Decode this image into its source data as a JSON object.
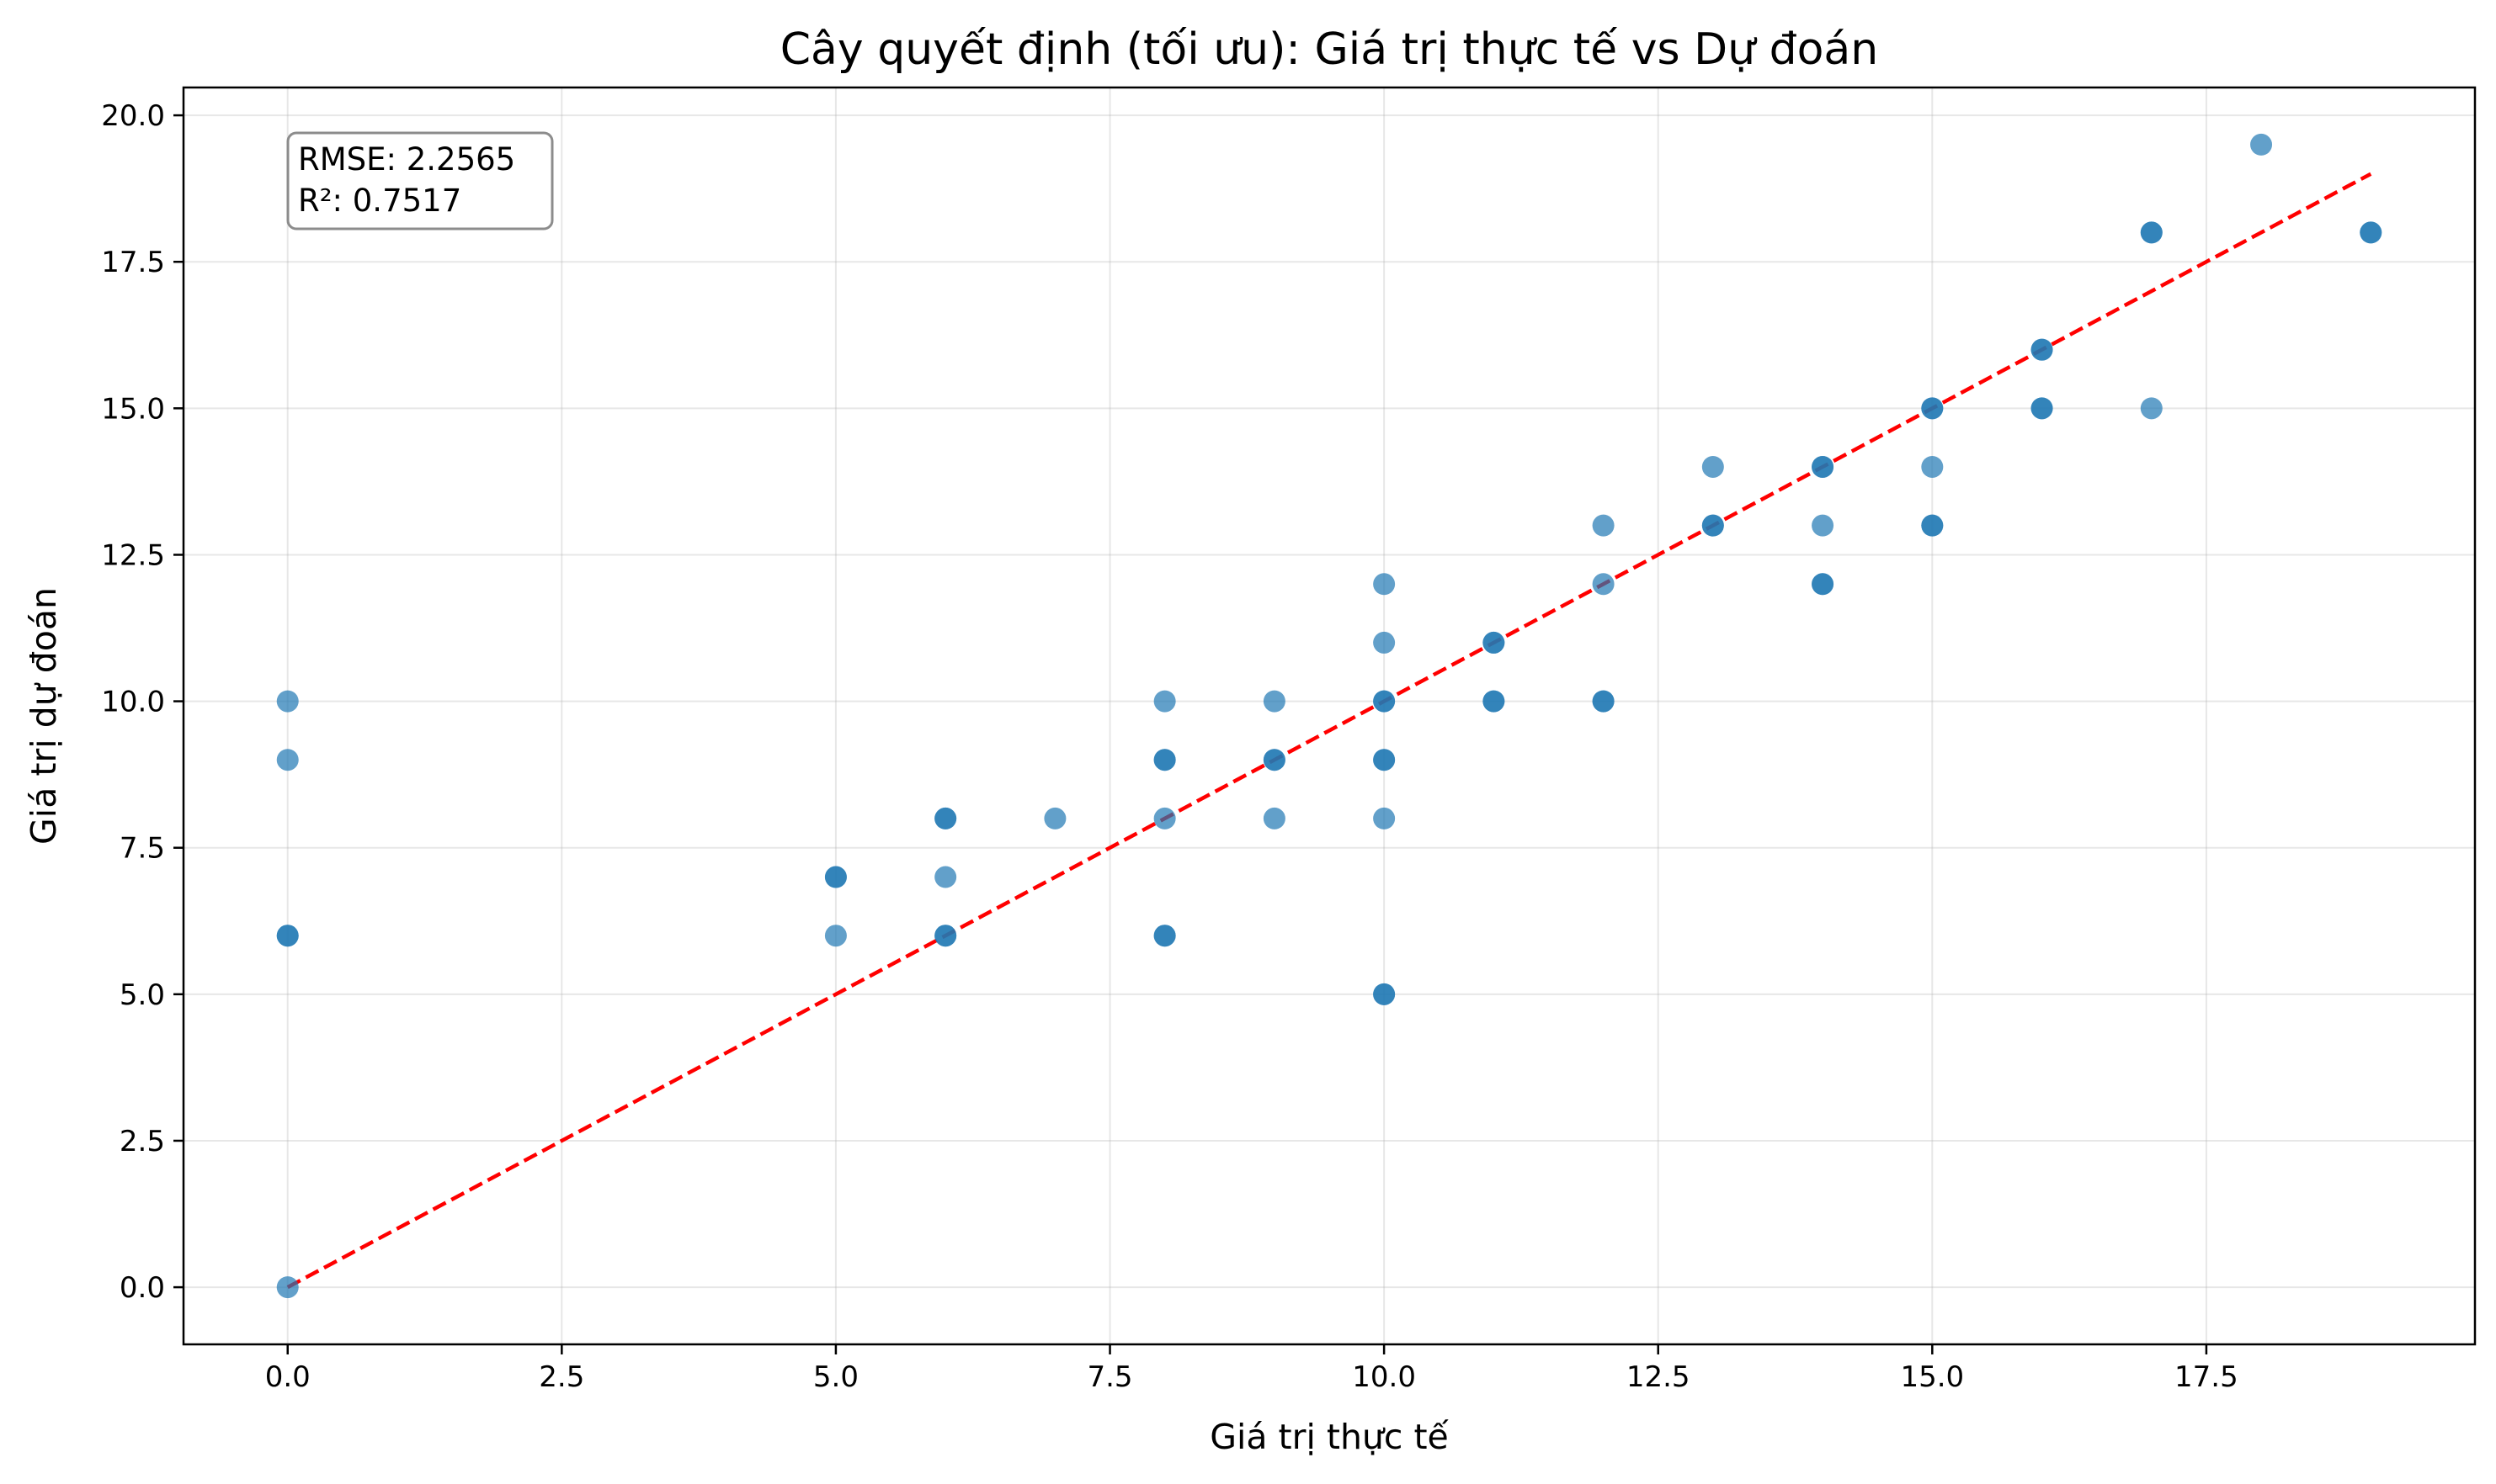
{
  "chart_data": {
    "type": "scatter",
    "title": "Cây quyết định (tối ưu): Giá trị thực tế vs Dự đoán",
    "xlabel": "Giá trị thực tế",
    "ylabel": "Giá trị dự đoán",
    "xlim": [
      -0.95,
      19.95
    ],
    "ylim": [
      -0.975,
      20.475
    ],
    "xticks": [
      0.0,
      2.5,
      5.0,
      7.5,
      10.0,
      12.5,
      15.0,
      17.5
    ],
    "xtick_labels": [
      "0.0",
      "2.5",
      "5.0",
      "7.5",
      "10.0",
      "12.5",
      "15.0",
      "17.5"
    ],
    "yticks": [
      0.0,
      2.5,
      5.0,
      7.5,
      10.0,
      12.5,
      15.0,
      17.5,
      20.0
    ],
    "ytick_labels": [
      "0.0",
      "2.5",
      "5.0",
      "7.5",
      "10.0",
      "12.5",
      "15.0",
      "17.5",
      "20.0"
    ],
    "grid": true,
    "colors": {
      "points": "#1f77b4",
      "reference_line": "#ff0000"
    },
    "reference_line": {
      "x": [
        0,
        19
      ],
      "y": [
        0,
        19
      ],
      "style": "dashed"
    },
    "points": [
      [
        0,
        10
      ],
      [
        0,
        9
      ],
      [
        0,
        6
      ],
      [
        0,
        6
      ],
      [
        0,
        0
      ],
      [
        5,
        7
      ],
      [
        5,
        7
      ],
      [
        5,
        6
      ],
      [
        6,
        8
      ],
      [
        6,
        8
      ],
      [
        6,
        7
      ],
      [
        6,
        6
      ],
      [
        6,
        6
      ],
      [
        7,
        8
      ],
      [
        8,
        10
      ],
      [
        8,
        9
      ],
      [
        8,
        9
      ],
      [
        8,
        8
      ],
      [
        8,
        6
      ],
      [
        8,
        6
      ],
      [
        9,
        10
      ],
      [
        9,
        9
      ],
      [
        9,
        9
      ],
      [
        9,
        8
      ],
      [
        10,
        12
      ],
      [
        10,
        11
      ],
      [
        10,
        10
      ],
      [
        10,
        10
      ],
      [
        10,
        9
      ],
      [
        10,
        9
      ],
      [
        10,
        8
      ],
      [
        10,
        5
      ],
      [
        10,
        5
      ],
      [
        11,
        11
      ],
      [
        11,
        11
      ],
      [
        11,
        10
      ],
      [
        11,
        10
      ],
      [
        12,
        13
      ],
      [
        12,
        12
      ],
      [
        12,
        10
      ],
      [
        12,
        10
      ],
      [
        13,
        14
      ],
      [
        13,
        13
      ],
      [
        13,
        13
      ],
      [
        14,
        14
      ],
      [
        14,
        14
      ],
      [
        14,
        13
      ],
      [
        14,
        12
      ],
      [
        14,
        12
      ],
      [
        15,
        15
      ],
      [
        15,
        15
      ],
      [
        15,
        14
      ],
      [
        15,
        13
      ],
      [
        15,
        13
      ],
      [
        16,
        16
      ],
      [
        16,
        16
      ],
      [
        16,
        15
      ],
      [
        16,
        15
      ],
      [
        17,
        18
      ],
      [
        17,
        18
      ],
      [
        17,
        15
      ],
      [
        18,
        19.5
      ],
      [
        19,
        18
      ],
      [
        19,
        18
      ]
    ],
    "annotation": {
      "rmse_text": "RMSE: 2.2565",
      "r2_text": "R²: 0.7517",
      "placement": "top-left"
    }
  }
}
